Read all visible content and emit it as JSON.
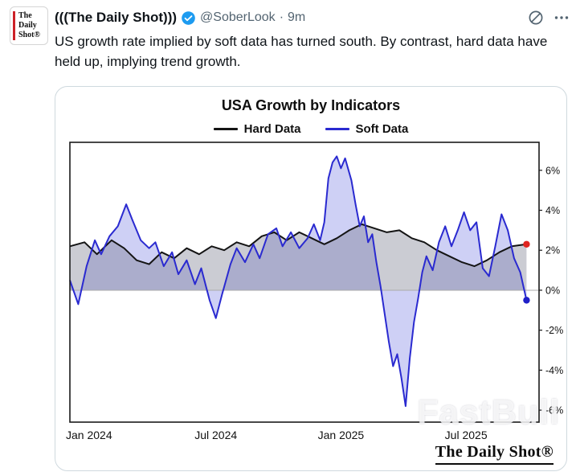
{
  "post": {
    "author_name": "(((The Daily Shot)))",
    "handle": "@SoberLook",
    "separator": "·",
    "timestamp": "9m",
    "body": "US growth rate implied by soft data has turned south. By contrast, hard data have held up, implying trend growth.",
    "avatar_lines": [
      "The",
      "Daily",
      "Shot®"
    ],
    "accent_colors": {
      "verified_blue": "#1d9bf0",
      "avatar_red": "#cc2127",
      "icon_gray": "#536471"
    }
  },
  "chart_card": {
    "title": "USA Growth by Indicators",
    "watermark": "FastBull",
    "brand": "The Daily Shot®",
    "legend": [
      {
        "label": "Hard Data"
      },
      {
        "label": "Soft Data"
      }
    ]
  },
  "chart_data": {
    "type": "line",
    "title": "USA Growth by Indicators",
    "x_note": "months, 0 = Dec 2023",
    "x_domain": [
      0,
      22.5
    ],
    "x_ticks": [
      {
        "pos": 1,
        "label": "Jan 2024"
      },
      {
        "pos": 7,
        "label": "Jul 2024"
      },
      {
        "pos": 13,
        "label": "Jan 2025"
      },
      {
        "pos": 19,
        "label": "Jul 2025"
      }
    ],
    "ylim": [
      -6.6,
      7.4
    ],
    "y_ticks": [
      6,
      4,
      2,
      0,
      -2,
      -4,
      -6
    ],
    "y_tick_suffix": "%",
    "grid": false,
    "legend_position": "top",
    "series": [
      {
        "name": "Hard Data",
        "color": "#141414",
        "fill": "rgba(105,110,130,0.35)",
        "end_marker": "#e02520",
        "x": [
          0,
          0.7,
          1.3,
          2.0,
          2.6,
          3.2,
          3.8,
          4.4,
          5.0,
          5.6,
          6.2,
          6.8,
          7.4,
          8.0,
          8.6,
          9.2,
          9.8,
          10.4,
          11.0,
          11.6,
          12.2,
          12.8,
          13.4,
          14.0,
          14.6,
          15.2,
          15.8,
          16.4,
          17.0,
          17.6,
          18.2,
          18.8,
          19.4,
          20.0,
          20.6,
          21.2,
          21.9
        ],
        "y": [
          2.2,
          2.4,
          1.8,
          2.5,
          2.1,
          1.5,
          1.3,
          1.9,
          1.6,
          2.1,
          1.8,
          2.2,
          2.0,
          2.4,
          2.2,
          2.7,
          2.9,
          2.5,
          2.9,
          2.6,
          2.3,
          2.6,
          3.0,
          3.3,
          3.1,
          2.9,
          3.0,
          2.6,
          2.4,
          2.0,
          1.7,
          1.4,
          1.2,
          1.5,
          1.9,
          2.2,
          2.3
        ]
      },
      {
        "name": "Soft Data",
        "color": "#2a2ad0",
        "fill": "rgba(173,176,238,0.6)",
        "end_marker": "#2020c8",
        "x": [
          0,
          0.4,
          0.8,
          1.2,
          1.5,
          1.9,
          2.3,
          2.7,
          3.0,
          3.4,
          3.8,
          4.1,
          4.5,
          4.9,
          5.2,
          5.6,
          6.0,
          6.3,
          6.7,
          7.0,
          7.3,
          7.7,
          8.0,
          8.4,
          8.8,
          9.1,
          9.5,
          9.9,
          10.2,
          10.6,
          11.0,
          11.4,
          11.7,
          12.0,
          12.2,
          12.4,
          12.6,
          12.8,
          13.0,
          13.2,
          13.5,
          13.7,
          13.9,
          14.1,
          14.3,
          14.5,
          14.7,
          14.9,
          15.1,
          15.3,
          15.5,
          15.7,
          15.9,
          16.1,
          16.3,
          16.5,
          16.7,
          16.9,
          17.1,
          17.4,
          17.7,
          18.0,
          18.3,
          18.6,
          18.9,
          19.2,
          19.5,
          19.8,
          20.1,
          20.4,
          20.7,
          21.0,
          21.3,
          21.6,
          21.9
        ],
        "y": [
          0.5,
          -0.7,
          1.2,
          2.5,
          1.8,
          2.7,
          3.2,
          4.3,
          3.5,
          2.5,
          2.1,
          2.4,
          1.2,
          1.9,
          0.8,
          1.5,
          0.3,
          1.1,
          -0.5,
          -1.4,
          -0.2,
          1.3,
          2.1,
          1.4,
          2.3,
          1.6,
          2.8,
          3.1,
          2.2,
          2.9,
          2.1,
          2.6,
          3.3,
          2.5,
          3.4,
          5.6,
          6.4,
          6.7,
          6.1,
          6.6,
          5.5,
          4.3,
          3.2,
          3.7,
          2.4,
          2.8,
          1.4,
          0.2,
          -1.2,
          -2.6,
          -3.8,
          -3.2,
          -4.4,
          -5.8,
          -3.4,
          -1.6,
          -0.4,
          0.9,
          1.7,
          1.0,
          2.4,
          3.2,
          2.2,
          3.0,
          3.9,
          3.0,
          3.4,
          1.1,
          0.7,
          2.2,
          3.8,
          3.0,
          1.6,
          0.9,
          -0.5
        ]
      }
    ]
  }
}
